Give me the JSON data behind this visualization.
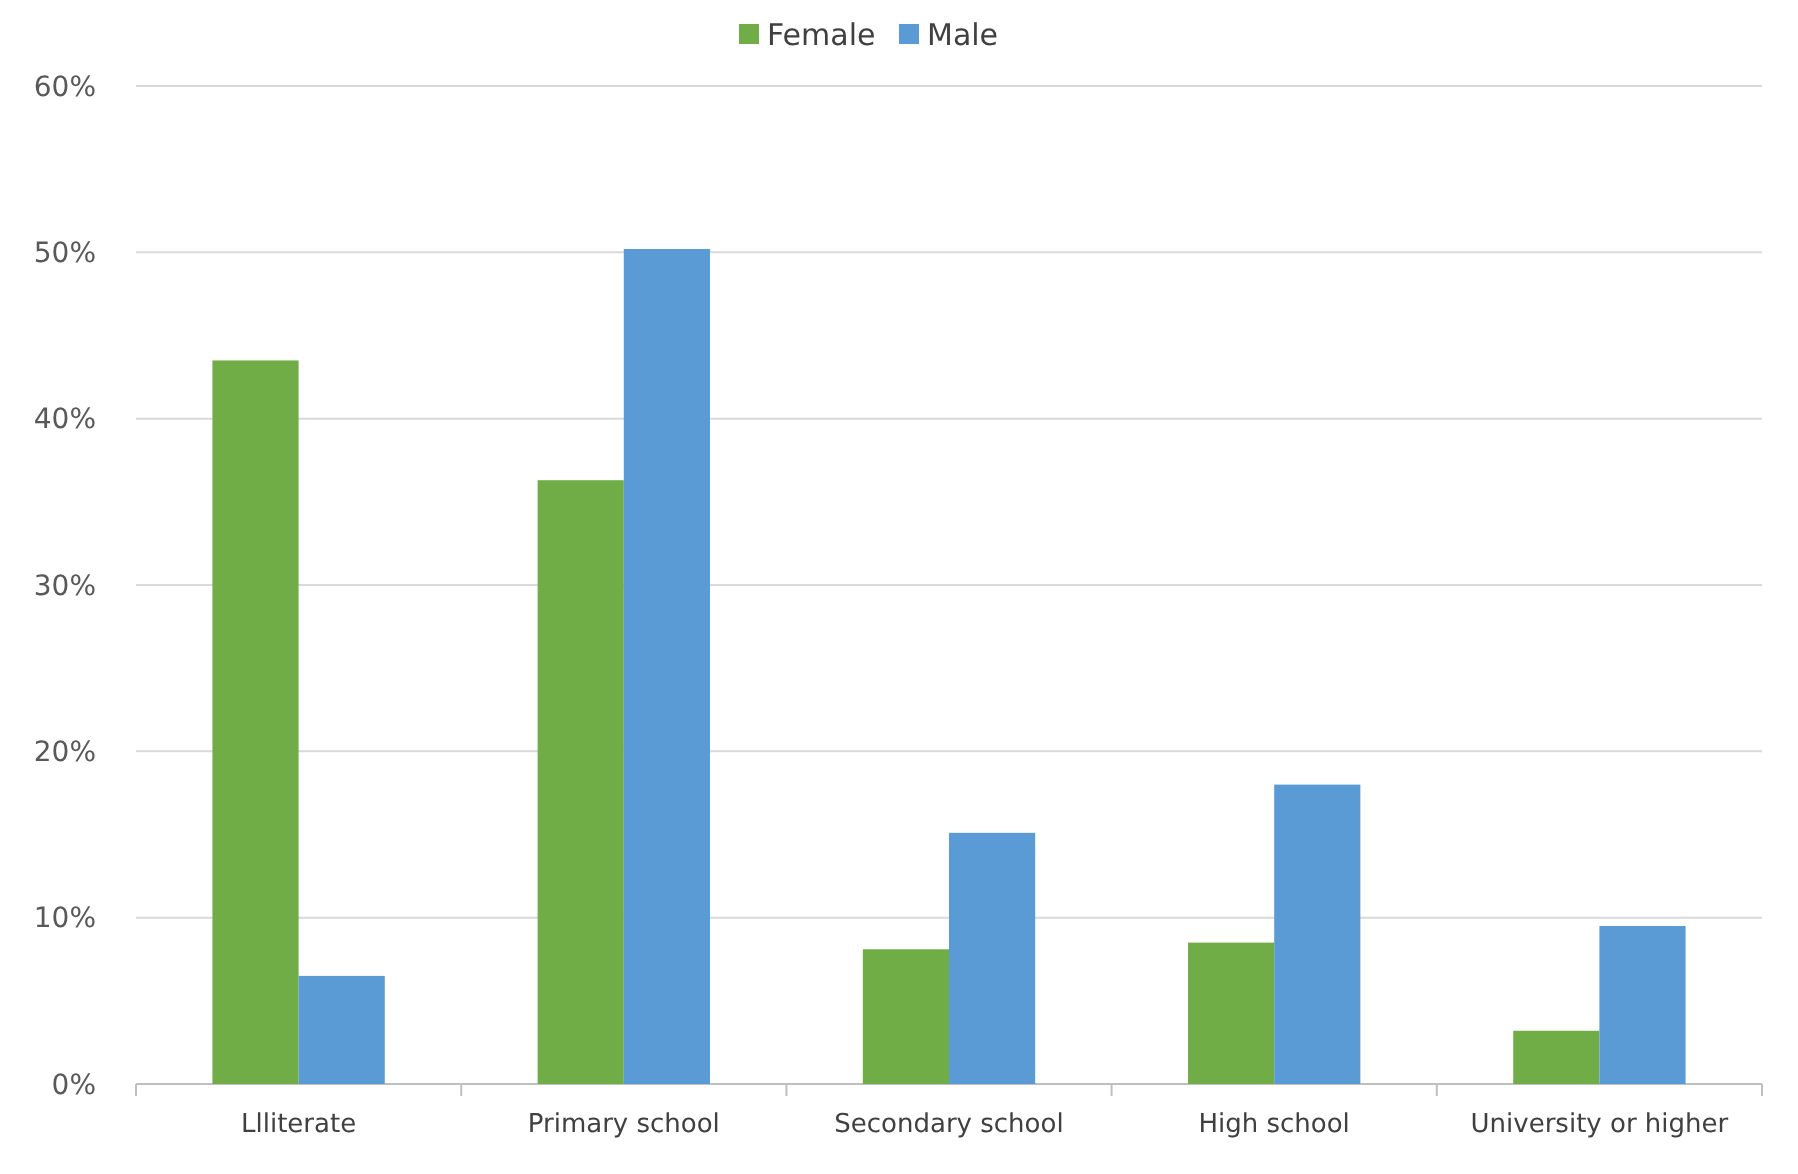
{
  "chart_data": {
    "type": "bar",
    "categories": [
      "Llliterate",
      "Primary school",
      "Secondary school",
      "High school",
      "University or higher"
    ],
    "series": [
      {
        "name": "Female",
        "color": "#70ad47",
        "values": [
          43.5,
          36.3,
          8.1,
          8.5,
          3.2
        ]
      },
      {
        "name": "Male",
        "color": "#5b9bd5",
        "values": [
          6.5,
          50.2,
          15.1,
          18.0,
          9.5
        ]
      }
    ],
    "ylim": [
      0,
      60
    ],
    "yticks": [
      {
        "value": 0,
        "label": "0%"
      },
      {
        "value": 10,
        "label": "10%"
      },
      {
        "value": 20,
        "label": "20%"
      },
      {
        "value": 30,
        "label": "30%"
      },
      {
        "value": 40,
        "label": "40%"
      },
      {
        "value": 50,
        "label": "50%"
      },
      {
        "value": 60,
        "label": "60%"
      }
    ],
    "grid": "y",
    "legend": "top"
  }
}
